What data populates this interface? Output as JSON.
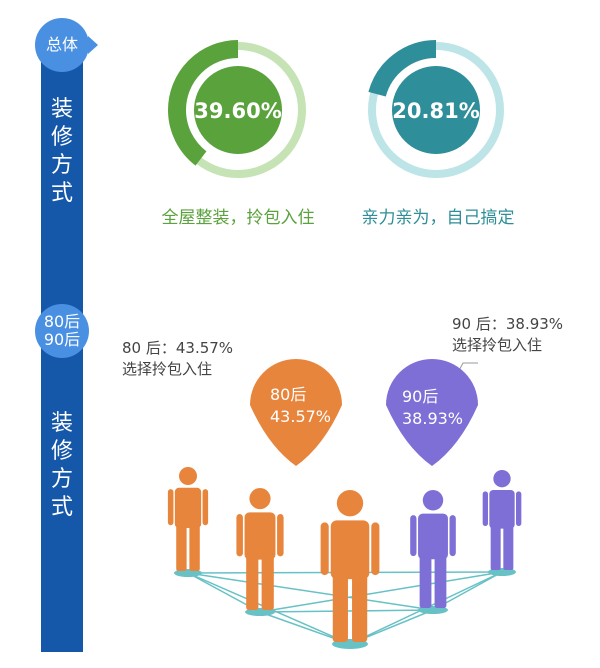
{
  "section1": {
    "badge": "总体",
    "side_title": "装修方式",
    "donuts": [
      {
        "value_label": "39.60%",
        "caption": "全屋整装，拎包入住",
        "color": "#5aa23c",
        "track": "#c5e3b5"
      },
      {
        "value_label": "20.81%",
        "caption": "亲力亲为，自己搞定",
        "color": "#2e8e99",
        "track": "#bde4e6"
      }
    ]
  },
  "section2": {
    "badge_line1": "80后",
    "badge_line2": "90后",
    "side_title": "装修方式",
    "left_note": "80 后：43.57%\n选择拎包入住",
    "right_note": "90 后：38.93%\n选择拎包入住",
    "pin_80": {
      "line1": "80后",
      "line2": "43.57%",
      "color": "#e8853d"
    },
    "pin_90": {
      "line1": "90后",
      "line2": "38.93%",
      "color": "#7d6fd6"
    }
  },
  "chart_data": {
    "type": "pie",
    "series": [
      {
        "name": "全屋整装，拎包入住",
        "value": 39.6
      },
      {
        "name": "亲力亲为，自己搞定",
        "value": 20.81
      }
    ],
    "generation": [
      {
        "name": "80后",
        "value": 43.57
      },
      {
        "name": "90后",
        "value": 38.93
      }
    ],
    "colors": {
      "orange": "#e8853d",
      "purple": "#7d6fd6",
      "network": "#67c1c5"
    }
  }
}
